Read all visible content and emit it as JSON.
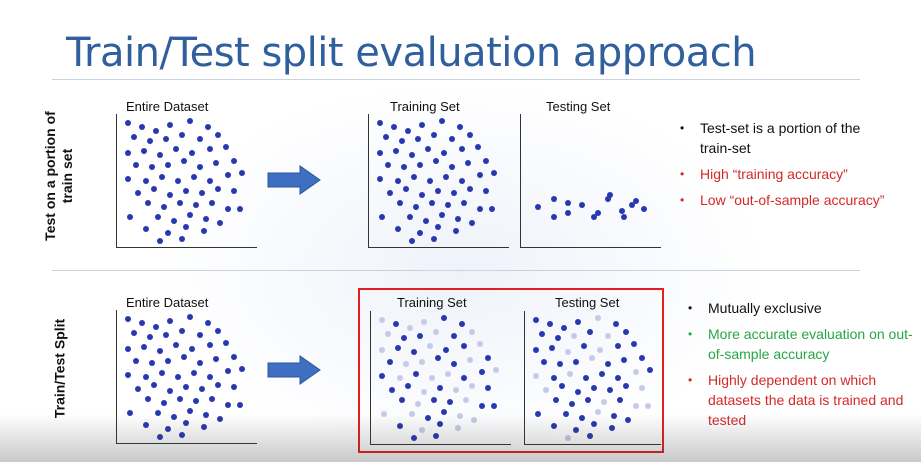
{
  "title": "Train/Test split evaluation approach",
  "top": {
    "side_label": "Test on a portion of train set",
    "entire_label": "Entire Dataset",
    "training_label": "Training Set",
    "testing_label": "Testing Set",
    "bullets": [
      {
        "text": "Test-set is a portion of the train-set",
        "color": "#111111"
      },
      {
        "text": "High “training accuracy”",
        "color": "#d62828"
      },
      {
        "text": " Low “out-of-sample accuracy”",
        "color": "#d62828"
      }
    ]
  },
  "bottom": {
    "side_label": "Train/Test Split",
    "entire_label": "Entire Dataset",
    "training_label": "Training Set",
    "testing_label": "Testing Set",
    "bullets": [
      {
        "text": "Mutually exclusive",
        "color": "#111111"
      },
      {
        "text": "More accurate evaluation on out-of-sample accuracy",
        "color": "#26a646"
      },
      {
        "text": "Highly dependent on which datasets the data is trained and tested",
        "color": "#d62828"
      }
    ]
  },
  "colors": {
    "title": "#2f5f9c",
    "dot": "#2838b0",
    "dot_light": "#c7c9e8",
    "arrow": "#3f6fc0",
    "highlight_box": "#e02020"
  },
  "icons": [
    "right-arrow-icon",
    "right-arrow-icon"
  ]
}
